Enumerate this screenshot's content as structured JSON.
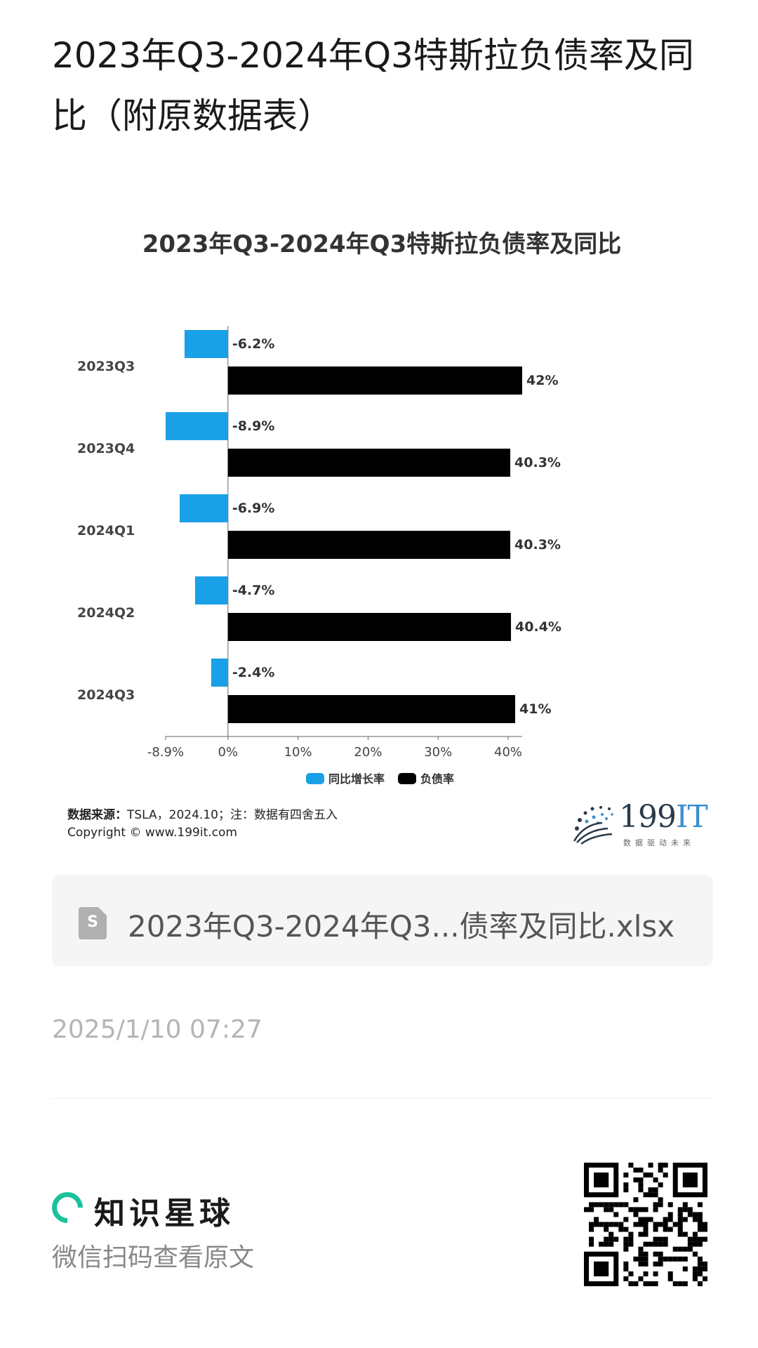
{
  "page": {
    "title": "2023年Q3-2024年Q3特斯拉负债率及同比（附原数据表）"
  },
  "chart_data": {
    "type": "bar",
    "orientation": "horizontal",
    "title": "2023年Q3-2024年Q3特斯拉负债率及同比",
    "categories": [
      "2023Q3",
      "2023Q4",
      "2024Q1",
      "2024Q2",
      "2024Q3"
    ],
    "series": [
      {
        "name": "同比增长率",
        "values": [
          -6.2,
          -8.9,
          -6.9,
          -4.7,
          -2.4
        ],
        "labels": [
          "-6.2%",
          "-8.9%",
          "-6.9%",
          "-4.7%",
          "-2.4%"
        ],
        "color": "#1aa0e6"
      },
      {
        "name": "负债率",
        "values": [
          42,
          40.3,
          40.3,
          40.4,
          41
        ],
        "labels": [
          "42%",
          "40.3%",
          "40.3%",
          "40.4%",
          "41%"
        ],
        "color": "#000000"
      }
    ],
    "xlim": [
      -8.9,
      42
    ],
    "x_ticks": [
      {
        "value": -8.9,
        "label": "-8.9%"
      },
      {
        "value": 0,
        "label": "0%"
      },
      {
        "value": 10,
        "label": "10%"
      },
      {
        "value": 20,
        "label": "20%"
      },
      {
        "value": 30,
        "label": "30%"
      },
      {
        "value": 40,
        "label": "40%"
      }
    ],
    "legend_position": "bottom",
    "grid": false
  },
  "source": {
    "label": "数据来源：",
    "text": "TSLA，2024.10；注：数据有四舍五入",
    "copyright": "Copyright © www.199it.com"
  },
  "logo": {
    "main": "199",
    "accent": "IT",
    "tagline": "数据驱动未来"
  },
  "attachment": {
    "icon_letter": "S",
    "file_name": "2023年Q3-2024年Q3...债率及同比.xlsx"
  },
  "timestamp": "2025/1/10 07:27",
  "footer": {
    "brand": "知识星球",
    "hint": "微信扫码查看原文",
    "accent_color": "#19c29b"
  }
}
